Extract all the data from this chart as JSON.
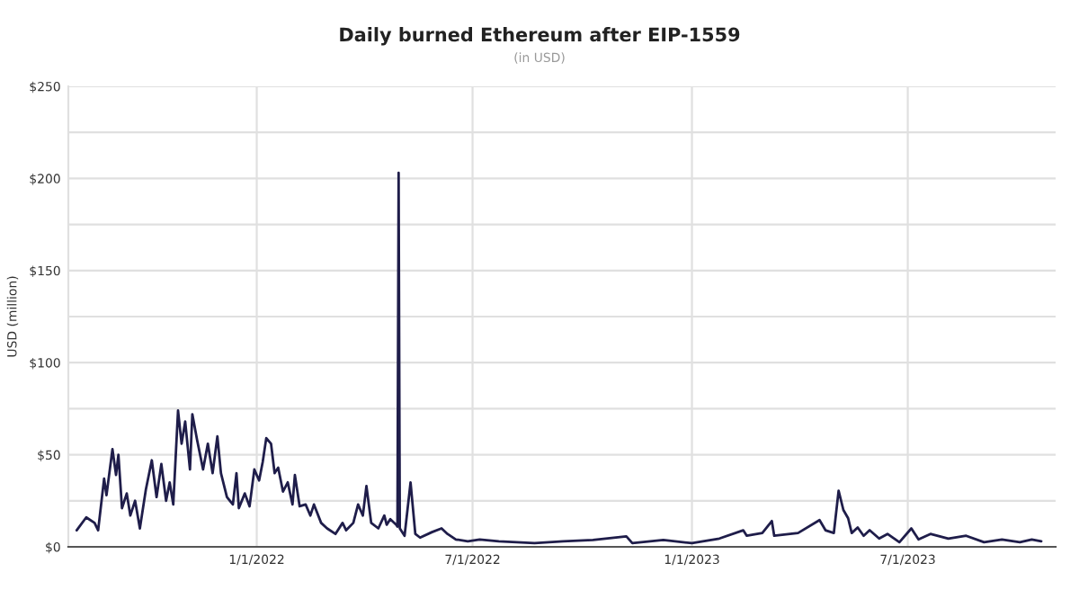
{
  "chart_data": {
    "type": "line",
    "title": "Daily burned Ethereum after EIP-1559",
    "subtitle": "(in USD)",
    "ylabel": "USD (million)",
    "x": [
      "2021-08-03",
      "2021-08-11",
      "2021-08-18",
      "2021-08-21",
      "2021-08-26",
      "2021-08-28",
      "2021-09-02",
      "2021-09-05",
      "2021-09-07",
      "2021-09-10",
      "2021-09-14",
      "2021-09-17",
      "2021-09-21",
      "2021-09-25",
      "2021-09-30",
      "2021-10-05",
      "2021-10-09",
      "2021-10-13",
      "2021-10-17",
      "2021-10-20",
      "2021-10-23",
      "2021-10-27",
      "2021-10-30",
      "2021-11-02",
      "2021-11-06",
      "2021-11-08",
      "2021-11-12",
      "2021-11-17",
      "2021-11-21",
      "2021-11-25",
      "2021-11-29",
      "2021-12-02",
      "2021-12-07",
      "2021-12-12",
      "2021-12-15",
      "2021-12-17",
      "2021-12-22",
      "2021-12-26",
      "2021-12-30",
      "2022-01-03",
      "2022-01-06",
      "2022-01-09",
      "2022-01-13",
      "2022-01-16",
      "2022-01-19",
      "2022-01-23",
      "2022-01-27",
      "2022-01-31",
      "2022-02-02",
      "2022-02-06",
      "2022-02-11",
      "2022-02-15",
      "2022-02-18",
      "2022-02-24",
      "2022-03-01",
      "2022-03-08",
      "2022-03-14",
      "2022-03-17",
      "2022-03-23",
      "2022-03-27",
      "2022-03-31",
      "2022-04-03",
      "2022-04-07",
      "2022-04-13",
      "2022-04-18",
      "2022-04-20",
      "2022-04-23",
      "2022-04-28",
      "2022-04-29",
      "2022-04-30",
      "2022-05-01",
      "2022-05-05",
      "2022-05-10",
      "2022-05-14",
      "2022-05-18",
      "2022-05-28",
      "2022-06-05",
      "2022-06-10",
      "2022-06-17",
      "2022-06-27",
      "2022-07-07",
      "2022-07-23",
      "2022-08-07",
      "2022-08-22",
      "2022-09-15",
      "2022-10-10",
      "2022-11-07",
      "2022-11-12",
      "2022-12-08",
      "2023-01-01",
      "2023-01-24",
      "2023-02-13",
      "2023-02-16",
      "2023-03-01",
      "2023-03-09",
      "2023-03-11",
      "2023-03-31",
      "2023-04-18",
      "2023-04-23",
      "2023-04-30",
      "2023-05-04",
      "2023-05-08",
      "2023-05-12",
      "2023-05-15",
      "2023-05-20",
      "2023-05-25",
      "2023-05-30",
      "2023-06-07",
      "2023-06-14",
      "2023-06-24",
      "2023-07-04",
      "2023-07-10",
      "2023-07-20",
      "2023-08-04",
      "2023-08-19",
      "2023-09-03",
      "2023-09-18",
      "2023-10-03",
      "2023-10-13",
      "2023-10-21"
    ],
    "series": [
      {
        "color": "#1f1d4a",
        "values": [
          9,
          16,
          13,
          9,
          37,
          28,
          53,
          39,
          50,
          21,
          29,
          17,
          25,
          10,
          31,
          47,
          27,
          45,
          25,
          35,
          23,
          74,
          56,
          68,
          42,
          72,
          58,
          42,
          56,
          40,
          60,
          40,
          27,
          23,
          40,
          21,
          29,
          22,
          42,
          36,
          46,
          59,
          56,
          40,
          43,
          30,
          35,
          23,
          39,
          22,
          23,
          17,
          23,
          13,
          10,
          7,
          13,
          9,
          13,
          23,
          17,
          33,
          13,
          10,
          17,
          12,
          15,
          12,
          11,
          203,
          10,
          6,
          35,
          7,
          5,
          8,
          10,
          7,
          4,
          3,
          4,
          3,
          2.5,
          2,
          3,
          3.7,
          5.7,
          2,
          3.7,
          2,
          4.5,
          9,
          6,
          7.5,
          14,
          6,
          7.5,
          14.5,
          9,
          7.5,
          30.5,
          20,
          15.5,
          7.5,
          10.5,
          6,
          9,
          4.5,
          7,
          2.5,
          10,
          4,
          7,
          4.5,
          6,
          2.5,
          4,
          2.5,
          4,
          3
        ]
      }
    ],
    "xlim": [
      "2021-07-27",
      "2023-11-02"
    ],
    "xticks": [
      {
        "value": "2022-01-01",
        "label": "1/1/2022"
      },
      {
        "value": "2022-07-01",
        "label": "7/1/2022"
      },
      {
        "value": "2023-01-01",
        "label": "1/1/2023"
      },
      {
        "value": "2023-07-01",
        "label": "7/1/2023"
      }
    ],
    "ylim": [
      0,
      250
    ],
    "yticks": [
      {
        "value": 0,
        "label": "$0"
      },
      {
        "value": 25,
        "label": null
      },
      {
        "value": 50,
        "label": "$50"
      },
      {
        "value": 75,
        "label": null
      },
      {
        "value": 100,
        "label": "$100"
      },
      {
        "value": 125,
        "label": null
      },
      {
        "value": 150,
        "label": "$150"
      },
      {
        "value": 175,
        "label": null
      },
      {
        "value": 200,
        "label": "$200"
      },
      {
        "value": 225,
        "label": null
      },
      {
        "value": 250,
        "label": "$250"
      }
    ],
    "grid": true,
    "legend": false
  }
}
